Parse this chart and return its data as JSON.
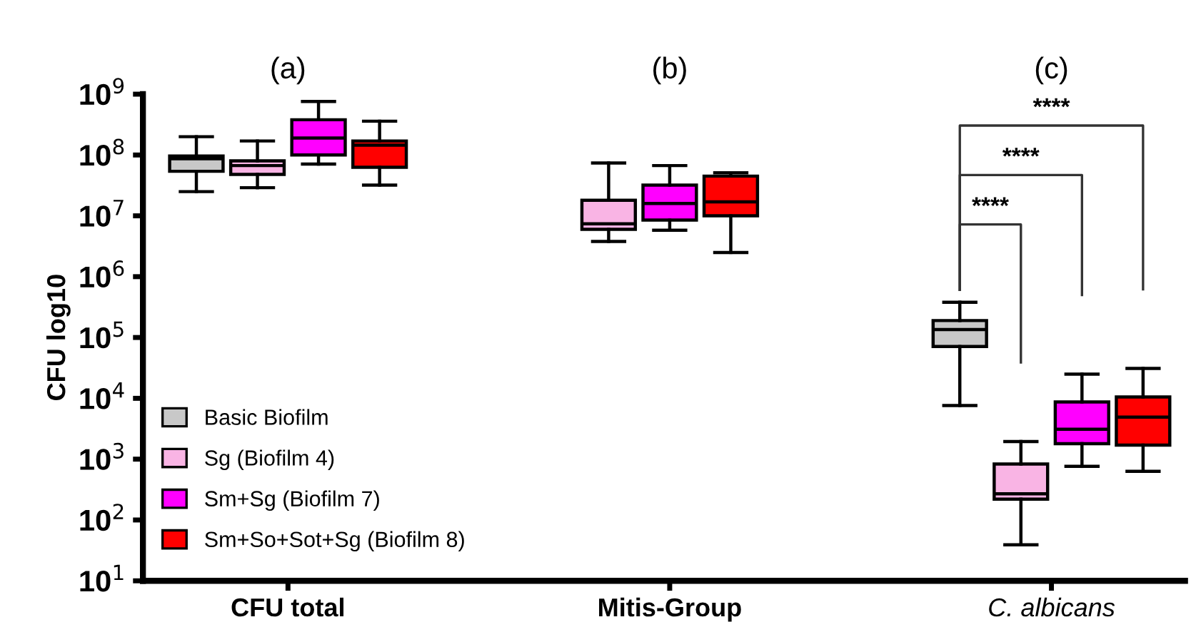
{
  "chart_data": {
    "type": "box",
    "ylabel": "CFU log10",
    "categories": [
      "CFU total",
      "Mitis-Group",
      "C. albicans"
    ],
    "series": [
      {
        "name": "Basic Biofilm",
        "color": "#c8c8c8",
        "boxes": [
          {
            "low": 25000000.0,
            "q1": 54000000.0,
            "median": 87000000.0,
            "q3": 96000000.0,
            "high": 200000000.0
          },
          null,
          {
            "low": 7600.0,
            "q1": 71000.0,
            "median": 135000.0,
            "q3": 190000.0,
            "high": 380000.0
          }
        ]
      },
      {
        "name": "Sg (Biofilm 4)",
        "color": "#f9b4e4",
        "boxes": [
          {
            "low": 29000000.0,
            "q1": 48000000.0,
            "median": 67000000.0,
            "q3": 80000000.0,
            "high": 170000000.0
          },
          {
            "low": 3800000.0,
            "q1": 6000000.0,
            "median": 7400000.0,
            "q3": 18000000.0,
            "high": 74000000.0
          },
          {
            "low": 39,
            "q1": 220,
            "median": 270,
            "q3": 830,
            "high": 1950
          }
        ]
      },
      {
        "name": "Sm+Sg (Biofilm 7)",
        "color": "#ff00ff",
        "boxes": [
          {
            "low": 71000000.0,
            "q1": 100000000.0,
            "median": 190000000.0,
            "q3": 380000000.0,
            "high": 760000000.0
          },
          {
            "low": 5800000.0,
            "q1": 8500000.0,
            "median": 16000000.0,
            "q3": 32000000.0,
            "high": 67000000.0
          },
          {
            "low": 760,
            "q1": 1800,
            "median": 3100,
            "q3": 8700,
            "high": 25000.0
          }
        ]
      },
      {
        "name": "Sm+So+Sot+Sg (Biofilm 8)",
        "color": "#ff0000",
        "boxes": [
          {
            "low": 32000000.0,
            "q1": 63000000.0,
            "median": 145000000.0,
            "q3": 170000000.0,
            "high": 360000000.0
          },
          {
            "low": 2500000.0,
            "q1": 10000000.0,
            "median": 17000000.0,
            "q3": 45000000.0,
            "high": 51000000.0
          },
          {
            "low": 630,
            "q1": 1700,
            "median": 4900,
            "q3": 10500.0,
            "high": 31000.0
          }
        ]
      }
    ],
    "log": "y",
    "ylim": [
      10,
      1000000000.0
    ],
    "yticks": [
      {
        "value": 10,
        "label": "10$^{1}$"
      },
      {
        "value": 100,
        "label": "10$^{2}$"
      },
      {
        "value": 1000,
        "label": "10$^{3}$"
      },
      {
        "value": 10000,
        "label": "10$^{4}$"
      },
      {
        "value": 100000,
        "label": "10$^{5}$"
      },
      {
        "value": 1000000,
        "label": "10$^{6}$"
      },
      {
        "value": 10000000,
        "label": "10$^{7}$"
      },
      {
        "value": 100000000,
        "label": "10$^{8}$"
      },
      {
        "value": 1000000000,
        "label": "10$^{9}$"
      }
    ],
    "annotations": [
      "(a)",
      "(b)",
      "(c)",
      "****",
      "****",
      "****"
    ],
    "grid": false,
    "legend": "bottom left"
  }
}
